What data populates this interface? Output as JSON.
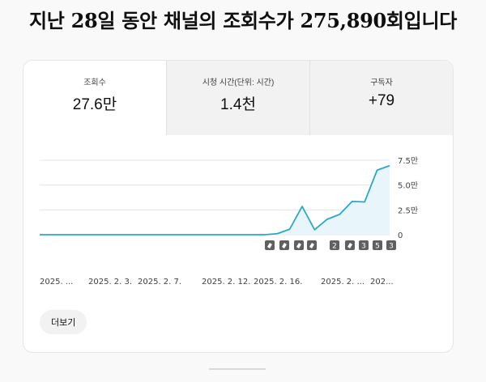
{
  "headline": {
    "prefix": "지난 ",
    "days": "28",
    "middle": "일 동안 채널의 조회수가 ",
    "views": "275,890",
    "suffix": "회입니다"
  },
  "tabs": [
    {
      "label": "조회수",
      "value": "27.6만",
      "active": true
    },
    {
      "label": "시청 시간(단위: 시간)",
      "value": "1.4천",
      "active": false
    },
    {
      "label": "구독자",
      "value": "+79",
      "active": false
    }
  ],
  "more_button": {
    "label": "더보기"
  },
  "colors": {
    "line": "#2aa8c6",
    "fill": "#e8f5fa",
    "grid": "#e5e5e5",
    "badge": "#606060"
  },
  "chart_data": {
    "type": "area",
    "y_ticks": [
      "0",
      "2.5만",
      "5.0만",
      "7.5만"
    ],
    "ylim": [
      0,
      75000
    ],
    "x_tick_labels": [
      "2025. ...",
      "2025. 2. 3.",
      "2025. 2. 7.",
      "2025. 2. 12.",
      "2025. 2. 16.",
      "2025. 2. ...",
      "202..."
    ],
    "series": [
      {
        "values": [
          0,
          0,
          0,
          0,
          0,
          0,
          0,
          0,
          0,
          0,
          0,
          0,
          0,
          0,
          0,
          0,
          0,
          0,
          0,
          1000,
          5500,
          28500,
          5000,
          15500,
          20500,
          33500,
          33000,
          65000,
          69500
        ]
      }
    ],
    "upload_markers": [
      {
        "type": "short",
        "count": 4
      },
      {
        "type": "count",
        "value": "2"
      },
      {
        "type": "short",
        "count": 1
      },
      {
        "type": "count",
        "value": "3"
      },
      {
        "type": "count",
        "value": "5"
      },
      {
        "type": "count",
        "value": "3"
      }
    ]
  }
}
